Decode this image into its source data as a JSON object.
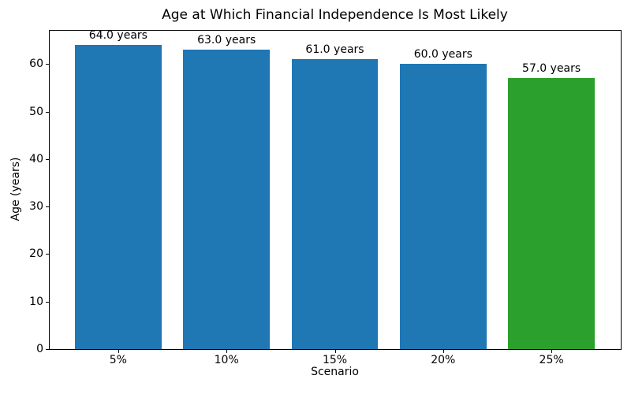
{
  "chart_data": {
    "type": "bar",
    "title": "Age at Which Financial Independence Is Most Likely",
    "xlabel": "Scenario",
    "ylabel": "Age (years)",
    "categories": [
      "5%",
      "10%",
      "15%",
      "20%",
      "25%"
    ],
    "values": [
      64.0,
      63.0,
      61.0,
      60.0,
      57.0
    ],
    "bar_labels": [
      "64.0 years",
      "63.0 years",
      "61.0 years",
      "60.0 years",
      "57.0 years"
    ],
    "bar_colors": [
      "#1f77b4",
      "#1f77b4",
      "#1f77b4",
      "#1f77b4",
      "#2ca02c"
    ],
    "yticks": [
      0,
      10,
      20,
      30,
      40,
      50,
      60
    ],
    "ylim": [
      0,
      67.2
    ],
    "grid": false,
    "legend_position": "none",
    "default_bar_color": "#1f77b4",
    "highlight_bar_color": "#2ca02c",
    "frame_color": "#000000",
    "background_color": "#ffffff"
  }
}
